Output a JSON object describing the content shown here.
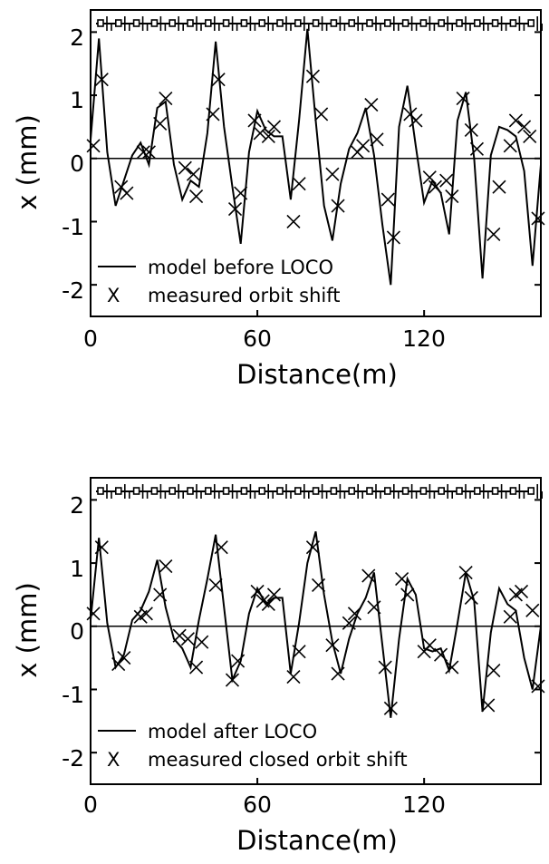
{
  "chart_data": [
    {
      "type": "line",
      "xlabel": "Distance(m)",
      "ylabel": "x (mm)",
      "xlim": [
        0,
        162
      ],
      "ylim": [
        -2.5,
        2.35
      ],
      "xticks": [
        0,
        60,
        120
      ],
      "yticks": [
        -2,
        -1,
        0,
        1,
        2
      ],
      "legend_position": "bottom-left",
      "series": [
        {
          "name": "model before LOCO",
          "style": "line",
          "x": [
            0,
            3,
            6,
            9,
            12,
            15,
            18,
            21,
            24,
            27,
            30,
            33,
            36,
            39,
            42,
            45,
            48,
            51,
            54,
            57,
            60,
            63,
            66,
            69,
            72,
            75,
            78,
            81,
            84,
            87,
            90,
            93,
            96,
            99,
            102,
            105,
            108,
            111,
            114,
            117,
            120,
            123,
            126,
            129,
            132,
            135,
            138,
            141,
            144,
            147,
            150,
            153,
            156,
            159,
            162
          ],
          "values": [
            0.3,
            1.9,
            0.1,
            -0.75,
            -0.35,
            0.05,
            0.25,
            -0.1,
            0.8,
            0.9,
            -0.1,
            -0.65,
            -0.35,
            -0.45,
            0.4,
            1.85,
            0.5,
            -0.45,
            -1.35,
            0.1,
            0.75,
            0.45,
            0.35,
            0.35,
            -0.65,
            0.6,
            2.05,
            0.6,
            -0.75,
            -1.3,
            -0.4,
            0.15,
            0.4,
            0.8,
            0.05,
            -1.05,
            -2.0,
            0.5,
            1.15,
            0.2,
            -0.7,
            -0.35,
            -0.55,
            -1.2,
            0.6,
            1.05,
            0.0,
            -1.9,
            0.05,
            0.5,
            0.45,
            0.35,
            -0.2,
            -1.7,
            -0.1
          ]
        },
        {
          "name": "measured orbit shift",
          "style": "markers",
          "marker": "X",
          "x": [
            1,
            4,
            11,
            13,
            19,
            21,
            25,
            27,
            34,
            37,
            38,
            44,
            46,
            52,
            54,
            59,
            61,
            64,
            66,
            73,
            75,
            80,
            83,
            87,
            89,
            96,
            98,
            101,
            103,
            107,
            109,
            115,
            117,
            122,
            124,
            128,
            130,
            134,
            137,
            139,
            145,
            147,
            151,
            153,
            156,
            158,
            161
          ],
          "values": [
            0.2,
            1.25,
            -0.45,
            -0.55,
            0.1,
            0.1,
            0.55,
            0.95,
            -0.15,
            -0.25,
            -0.6,
            0.7,
            1.25,
            -0.8,
            -0.55,
            0.6,
            0.4,
            0.35,
            0.5,
            -1.0,
            -0.4,
            1.3,
            0.7,
            -0.25,
            -0.75,
            0.1,
            0.2,
            0.85,
            0.3,
            -0.65,
            -1.25,
            0.7,
            0.6,
            -0.3,
            -0.45,
            -0.35,
            -0.6,
            0.95,
            0.45,
            0.15,
            -1.2,
            -0.45,
            0.2,
            0.6,
            0.5,
            0.35,
            -0.95
          ]
        }
      ]
    },
    {
      "type": "line",
      "xlabel": "Distance(m)",
      "ylabel": "x (mm)",
      "xlim": [
        0,
        162
      ],
      "ylim": [
        -2.5,
        2.35
      ],
      "xticks": [
        0,
        60,
        120
      ],
      "yticks": [
        -2,
        -1,
        0,
        1,
        2
      ],
      "legend_position": "bottom-left",
      "series": [
        {
          "name": "model after LOCO",
          "style": "line",
          "x": [
            0,
            3,
            6,
            9,
            12,
            15,
            18,
            21,
            24,
            27,
            30,
            33,
            36,
            39,
            42,
            45,
            48,
            51,
            54,
            57,
            60,
            63,
            66,
            69,
            72,
            75,
            78,
            81,
            84,
            87,
            90,
            93,
            96,
            99,
            102,
            105,
            108,
            111,
            114,
            117,
            120,
            123,
            126,
            129,
            132,
            135,
            138,
            141,
            144,
            147,
            150,
            153,
            156,
            159,
            162
          ],
          "values": [
            0.1,
            1.4,
            0.05,
            -0.65,
            -0.45,
            0.1,
            0.25,
            0.55,
            1.05,
            0.3,
            -0.2,
            -0.35,
            -0.65,
            0.1,
            0.75,
            1.45,
            0.3,
            -0.85,
            -0.55,
            0.2,
            0.6,
            0.35,
            0.45,
            0.45,
            -0.75,
            0.05,
            1.0,
            1.5,
            0.5,
            -0.25,
            -0.75,
            -0.2,
            0.2,
            0.45,
            0.85,
            -0.3,
            -1.45,
            -0.2,
            0.75,
            0.5,
            -0.35,
            -0.4,
            -0.35,
            -0.7,
            0.05,
            0.85,
            0.4,
            -1.35,
            -0.1,
            0.6,
            0.35,
            0.25,
            -0.5,
            -1.0,
            0.0
          ]
        },
        {
          "name": "measured closed orbit shift",
          "style": "markers",
          "marker": "X",
          "x": [
            1,
            4,
            10,
            12,
            18,
            20,
            25,
            27,
            32,
            35,
            38,
            40,
            45,
            47,
            51,
            53,
            60,
            62,
            64,
            66,
            73,
            75,
            80,
            82,
            87,
            89,
            93,
            95,
            100,
            102,
            106,
            108,
            112,
            114,
            120,
            122,
            126,
            130,
            135,
            137,
            143,
            145,
            151,
            153,
            155,
            159,
            161
          ],
          "values": [
            0.2,
            1.25,
            -0.6,
            -0.5,
            0.15,
            0.2,
            0.5,
            0.95,
            -0.15,
            -0.2,
            -0.65,
            -0.25,
            0.65,
            1.25,
            -0.85,
            -0.55,
            0.55,
            0.4,
            0.35,
            0.5,
            -0.8,
            -0.4,
            1.25,
            0.65,
            -0.3,
            -0.75,
            0.05,
            0.2,
            0.8,
            0.3,
            -0.65,
            -1.3,
            0.75,
            0.5,
            -0.4,
            -0.3,
            -0.45,
            -0.65,
            0.85,
            0.45,
            -1.25,
            -0.7,
            0.15,
            0.5,
            0.55,
            0.25,
            -0.95
          ]
        }
      ]
    }
  ]
}
